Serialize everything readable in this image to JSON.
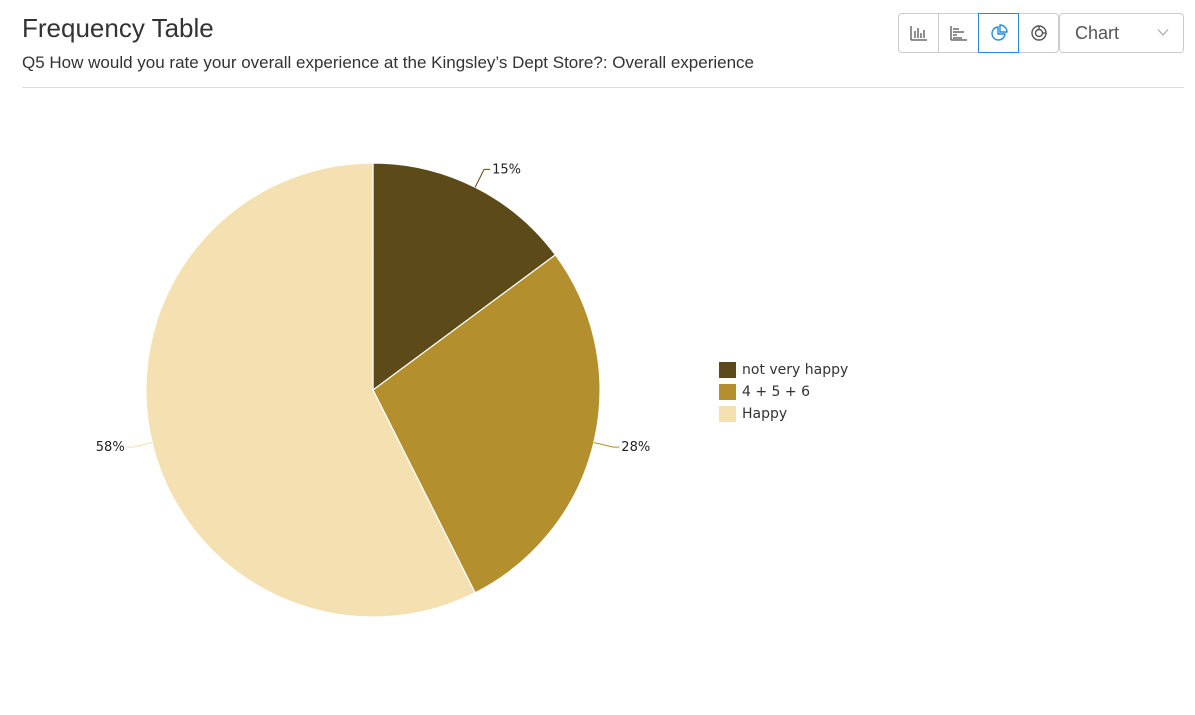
{
  "header": {
    "title": "Frequency Table",
    "subtitle": "Q5 How would you rate your overall experience at the Kingsley’s Dept Store?: Overall experience"
  },
  "toolbar": {
    "buttons": [
      {
        "icon": "vertical-bar-chart-icon",
        "active": false
      },
      {
        "icon": "horizontal-bar-chart-icon",
        "active": false
      },
      {
        "icon": "pie-chart-icon",
        "active": true
      },
      {
        "icon": "donut-chart-icon",
        "active": false
      }
    ],
    "accent_color": "#2a8ad4",
    "view_select": {
      "value": "Chart",
      "icon": "chevron-down-icon"
    }
  },
  "chart_data": {
    "type": "pie",
    "categories": [
      "not very happy",
      "4 + 5 + 6",
      "Happy"
    ],
    "values": [
      15,
      28,
      58
    ],
    "labels": [
      "15%",
      "28%",
      "58%"
    ],
    "colors": [
      "#5c4a18",
      "#b38f2d",
      "#f4e0b1"
    ],
    "legend": "right"
  }
}
